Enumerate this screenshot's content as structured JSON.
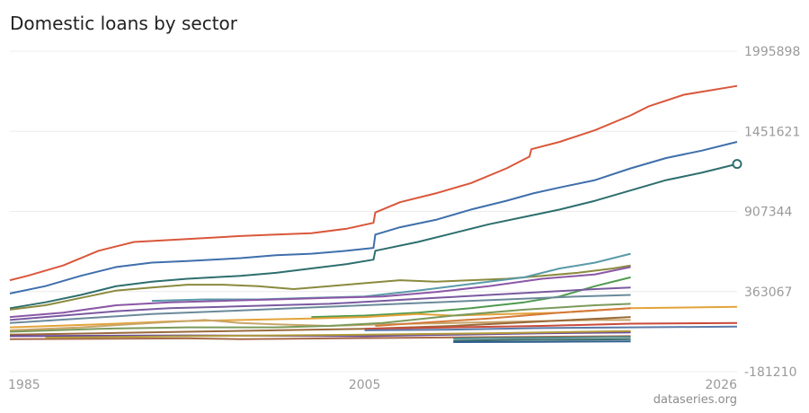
{
  "title": "Domestic loans by sector",
  "watermark": "dataseries.org",
  "chart_data": {
    "type": "line",
    "title": "Domestic loans by sector",
    "xlabel": "",
    "ylabel": "",
    "xlim": [
      1985,
      2026
    ],
    "ylim": [
      -181210,
      1995898
    ],
    "x_ticks": [
      "1985",
      "2005",
      "2026"
    ],
    "y_ticks": [
      "1995898",
      "1451621",
      "907344",
      "363067",
      "-181210"
    ],
    "grid": true,
    "legend": "none",
    "series": [
      {
        "color": "#d9573b",
        "points": [
          [
            1985,
            440000
          ],
          [
            1986,
            470000
          ],
          [
            1988,
            540000
          ],
          [
            1990,
            640000
          ],
          [
            1992,
            700000
          ],
          [
            1995,
            720000
          ],
          [
            1998,
            740000
          ],
          [
            2000,
            750000
          ],
          [
            2002,
            760000
          ],
          [
            2004,
            790000
          ],
          [
            2005.5,
            830000
          ],
          [
            2005.6,
            900000
          ],
          [
            2007,
            970000
          ],
          [
            2009,
            1030000
          ],
          [
            2011,
            1100000
          ],
          [
            2013,
            1200000
          ],
          [
            2014.3,
            1280000
          ],
          [
            2014.4,
            1330000
          ],
          [
            2016,
            1380000
          ],
          [
            2018,
            1460000
          ],
          [
            2020,
            1560000
          ],
          [
            2021,
            1620000
          ],
          [
            2023,
            1700000
          ],
          [
            2026,
            1760000
          ]
        ]
      },
      {
        "color": "#3f6fab",
        "points": [
          [
            1985,
            350000
          ],
          [
            1987,
            400000
          ],
          [
            1989,
            470000
          ],
          [
            1991,
            530000
          ],
          [
            1993,
            560000
          ],
          [
            1995,
            570000
          ],
          [
            1998,
            590000
          ],
          [
            2000,
            610000
          ],
          [
            2002,
            620000
          ],
          [
            2004,
            640000
          ],
          [
            2005.5,
            660000
          ],
          [
            2005.6,
            750000
          ],
          [
            2007,
            800000
          ],
          [
            2009,
            850000
          ],
          [
            2011,
            920000
          ],
          [
            2013,
            980000
          ],
          [
            2014.5,
            1030000
          ],
          [
            2016,
            1070000
          ],
          [
            2018,
            1120000
          ],
          [
            2020,
            1200000
          ],
          [
            2022,
            1270000
          ],
          [
            2024,
            1320000
          ],
          [
            2026,
            1380000
          ]
        ]
      },
      {
        "color": "#2e6e6e",
        "points": [
          [
            1985,
            250000
          ],
          [
            1987,
            290000
          ],
          [
            1989,
            340000
          ],
          [
            1991,
            400000
          ],
          [
            1993,
            430000
          ],
          [
            1995,
            450000
          ],
          [
            1998,
            470000
          ],
          [
            2000,
            490000
          ],
          [
            2002,
            520000
          ],
          [
            2004,
            550000
          ],
          [
            2005.5,
            580000
          ],
          [
            2005.6,
            640000
          ],
          [
            2008,
            700000
          ],
          [
            2010,
            760000
          ],
          [
            2012,
            820000
          ],
          [
            2014,
            870000
          ],
          [
            2016,
            920000
          ],
          [
            2018,
            980000
          ],
          [
            2020,
            1050000
          ],
          [
            2022,
            1120000
          ],
          [
            2024,
            1170000
          ],
          [
            2026,
            1230000
          ]
        ]
      },
      {
        "color": "#8a8a3e",
        "points": [
          [
            1985,
            240000
          ],
          [
            1987,
            270000
          ],
          [
            1989,
            320000
          ],
          [
            1991,
            370000
          ],
          [
            1993,
            390000
          ],
          [
            1995,
            410000
          ],
          [
            1997,
            410000
          ],
          [
            1999,
            400000
          ],
          [
            2001,
            380000
          ],
          [
            2003,
            400000
          ],
          [
            2005,
            420000
          ],
          [
            2007,
            440000
          ],
          [
            2009,
            430000
          ],
          [
            2011,
            440000
          ],
          [
            2013,
            450000
          ],
          [
            2015,
            470000
          ],
          [
            2017,
            490000
          ],
          [
            2019,
            520000
          ],
          [
            2020,
            540000
          ]
        ]
      },
      {
        "color": "#5a9aa8",
        "points": [
          [
            1993,
            300000
          ],
          [
            1996,
            310000
          ],
          [
            1999,
            310000
          ],
          [
            2002,
            320000
          ],
          [
            2005,
            330000
          ],
          [
            2008,
            370000
          ],
          [
            2010,
            400000
          ],
          [
            2012,
            430000
          ],
          [
            2014,
            460000
          ],
          [
            2016,
            520000
          ],
          [
            2018,
            560000
          ],
          [
            2020,
            620000
          ]
        ]
      },
      {
        "color": "#8b57a6",
        "points": [
          [
            1985,
            190000
          ],
          [
            1988,
            220000
          ],
          [
            1991,
            270000
          ],
          [
            1994,
            290000
          ],
          [
            1997,
            300000
          ],
          [
            2000,
            310000
          ],
          [
            2003,
            320000
          ],
          [
            2006,
            330000
          ],
          [
            2009,
            360000
          ],
          [
            2012,
            400000
          ],
          [
            2015,
            450000
          ],
          [
            2018,
            480000
          ],
          [
            2020,
            530000
          ]
        ]
      },
      {
        "color": "#4f9a4f",
        "points": [
          [
            2002,
            190000
          ],
          [
            2005,
            200000
          ],
          [
            2008,
            220000
          ],
          [
            2011,
            250000
          ],
          [
            2014,
            290000
          ],
          [
            2016,
            330000
          ],
          [
            2018,
            400000
          ],
          [
            2020,
            460000
          ]
        ]
      },
      {
        "color": "#7a5aa0",
        "points": [
          [
            1985,
            170000
          ],
          [
            1988,
            200000
          ],
          [
            1991,
            230000
          ],
          [
            1994,
            250000
          ],
          [
            1997,
            260000
          ],
          [
            2000,
            270000
          ],
          [
            2003,
            280000
          ],
          [
            2006,
            300000
          ],
          [
            2009,
            320000
          ],
          [
            2012,
            340000
          ],
          [
            2015,
            360000
          ],
          [
            2018,
            380000
          ],
          [
            2020,
            390000
          ]
        ]
      },
      {
        "color": "#6a8a9a",
        "points": [
          [
            1985,
            150000
          ],
          [
            1989,
            180000
          ],
          [
            1993,
            210000
          ],
          [
            1997,
            230000
          ],
          [
            2001,
            250000
          ],
          [
            2005,
            270000
          ],
          [
            2009,
            290000
          ],
          [
            2013,
            310000
          ],
          [
            2017,
            330000
          ],
          [
            2020,
            340000
          ]
        ]
      },
      {
        "color": "#e3a33a",
        "points": [
          [
            1985,
            120000
          ],
          [
            1990,
            140000
          ],
          [
            1994,
            160000
          ],
          [
            1998,
            170000
          ],
          [
            2002,
            180000
          ],
          [
            2005,
            190000
          ],
          [
            2008,
            210000
          ],
          [
            2010,
            200000
          ],
          [
            2013,
            210000
          ],
          [
            2016,
            220000
          ],
          [
            2020,
            250000
          ],
          [
            2026,
            260000
          ]
        ]
      },
      {
        "color": "#c7a56a",
        "points": [
          [
            1985,
            100000
          ],
          [
            1989,
            120000
          ],
          [
            1993,
            150000
          ],
          [
            1996,
            170000
          ],
          [
            1998,
            150000
          ],
          [
            2000,
            140000
          ],
          [
            2003,
            130000
          ],
          [
            2006,
            140000
          ],
          [
            2010,
            150000
          ],
          [
            2014,
            160000
          ],
          [
            2018,
            170000
          ],
          [
            2020,
            170000
          ]
        ]
      },
      {
        "color": "#7a9a5a",
        "points": [
          [
            1985,
            90000
          ],
          [
            1990,
            110000
          ],
          [
            1995,
            120000
          ],
          [
            2000,
            120000
          ],
          [
            2003,
            130000
          ],
          [
            2006,
            150000
          ],
          [
            2010,
            200000
          ],
          [
            2014,
            240000
          ],
          [
            2018,
            270000
          ],
          [
            2020,
            280000
          ]
        ]
      },
      {
        "color": "#d47a3a",
        "points": [
          [
            2005.6,
            130000
          ],
          [
            2008,
            150000
          ],
          [
            2012,
            180000
          ],
          [
            2016,
            220000
          ],
          [
            2020,
            250000
          ]
        ]
      },
      {
        "color": "#9a6a3a",
        "points": [
          [
            1985,
            70000
          ],
          [
            1990,
            80000
          ],
          [
            1995,
            90000
          ],
          [
            2000,
            100000
          ],
          [
            2005,
            110000
          ],
          [
            2010,
            130000
          ],
          [
            2015,
            160000
          ],
          [
            2020,
            190000
          ]
        ]
      },
      {
        "color": "#c94a3a",
        "points": [
          [
            2005,
            110000
          ],
          [
            2010,
            120000
          ],
          [
            2015,
            130000
          ],
          [
            2020,
            145000
          ],
          [
            2026,
            150000
          ]
        ]
      },
      {
        "color": "#5a7aa8",
        "points": [
          [
            2005,
            100000
          ],
          [
            2010,
            105000
          ],
          [
            2015,
            115000
          ],
          [
            2020,
            120000
          ],
          [
            2026,
            125000
          ]
        ]
      },
      {
        "color": "#6a4a9a",
        "points": [
          [
            1985,
            60000
          ],
          [
            1995,
            65000
          ],
          [
            2005,
            60000
          ],
          [
            2010,
            70000
          ],
          [
            2015,
            80000
          ],
          [
            2020,
            85000
          ]
        ]
      },
      {
        "color": "#a86a4a",
        "points": [
          [
            1985,
            40000
          ],
          [
            1995,
            45000
          ],
          [
            1998,
            40000
          ],
          [
            2003,
            45000
          ],
          [
            2008,
            50000
          ],
          [
            2014,
            55000
          ],
          [
            2020,
            60000
          ]
        ]
      },
      {
        "color": "#3a6a6a",
        "points": [
          [
            2010,
            30000
          ],
          [
            2014,
            35000
          ],
          [
            2018,
            38000
          ],
          [
            2020,
            40000
          ]
        ]
      },
      {
        "color": "#2f5f8f",
        "points": [
          [
            2010,
            20000
          ],
          [
            2015,
            22000
          ],
          [
            2020,
            25000
          ]
        ]
      },
      {
        "color": "#4a8a8a",
        "points": [
          [
            2010,
            45000
          ],
          [
            2015,
            50000
          ],
          [
            2020,
            55000
          ]
        ]
      },
      {
        "color": "#b09a3a",
        "points": [
          [
            1987,
            50000
          ],
          [
            1995,
            60000
          ],
          [
            2005,
            70000
          ],
          [
            2012,
            80000
          ],
          [
            2020,
            95000
          ]
        ]
      }
    ]
  }
}
